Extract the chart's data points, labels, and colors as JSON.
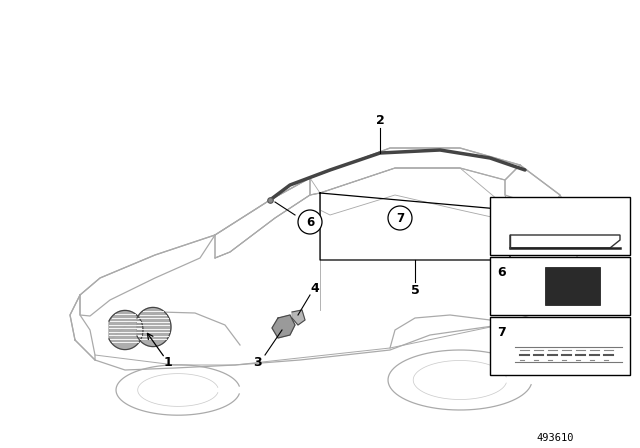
{
  "background_color": "#ffffff",
  "part_number": "493610",
  "car_color": "#aaaaaa",
  "car_lw": 0.9,
  "dark_color": "#555555",
  "label_fontsize": 9,
  "inset_border_color": "#000000"
}
